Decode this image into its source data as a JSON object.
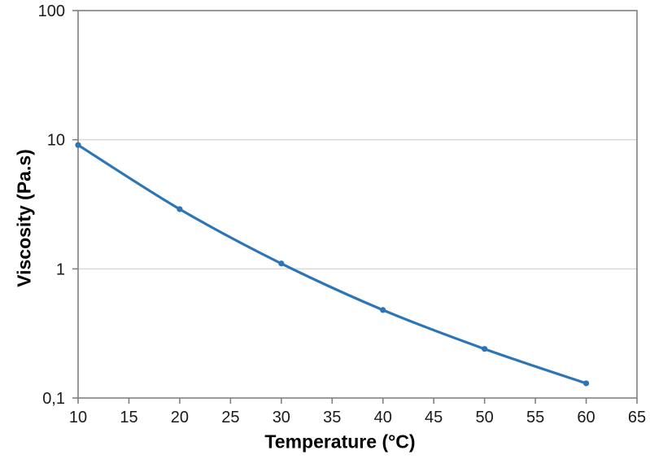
{
  "chart_data": {
    "type": "line",
    "title": "",
    "xlabel": "Temperature (°C)",
    "ylabel": "Viscosity (Pa.s)",
    "x": [
      10,
      20,
      30,
      40,
      50,
      60
    ],
    "series": [
      {
        "name": "Viscosity",
        "values": [
          9.1,
          2.9,
          1.1,
          0.48,
          0.24,
          0.13
        ]
      }
    ],
    "x_axis": {
      "min": 10,
      "max": 65,
      "tick_step": 5,
      "ticks": [
        10,
        15,
        20,
        25,
        30,
        35,
        40,
        45,
        50,
        55,
        60,
        65
      ]
    },
    "y_axis": {
      "scale": "log",
      "min": 0.1,
      "max": 100,
      "ticks": [
        {
          "value": 100,
          "label": "100"
        },
        {
          "value": 10,
          "label": "10"
        },
        {
          "value": 1,
          "label": "1"
        },
        {
          "value": 0.1,
          "label": "0,1"
        }
      ]
    },
    "grid": "horizontal-major-only",
    "legend": "none",
    "line_smooth": true,
    "marker": "circle",
    "colors": {
      "line": "#2E75B6",
      "marker": "#2E75B6",
      "axis": "#808080",
      "gridline": "#D9D9D9",
      "text": "#1A1A1A",
      "background": "#FFFFFF"
    }
  }
}
